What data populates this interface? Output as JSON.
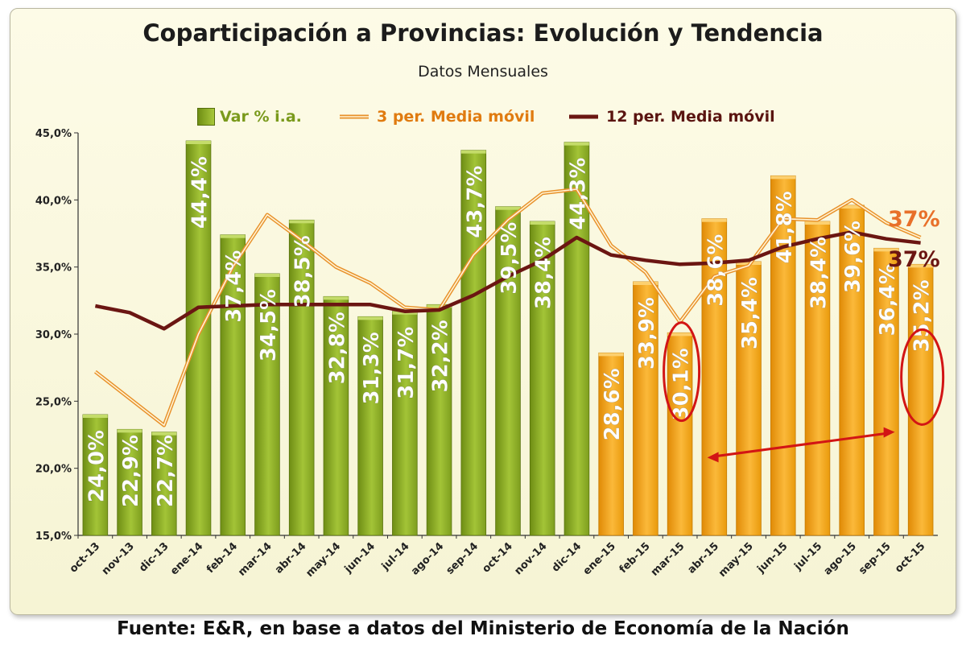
{
  "chart_data": {
    "type": "bar",
    "title": "Coparticipación a Provincias: Evolución y Tendencia",
    "subtitle": "Datos Mensuales",
    "categories": [
      "oct-13",
      "nov-13",
      "dic-13",
      "ene-14",
      "feb-14",
      "mar-14",
      "abr-14",
      "may-14",
      "jun-14",
      "jul-14",
      "ago-14",
      "sep-14",
      "oct-14",
      "nov-14",
      "dic-14",
      "ene-15",
      "feb-15",
      "mar-15",
      "abr-15",
      "may-15",
      "jun-15",
      "jul-15",
      "ago-15",
      "sep-15",
      "oct-15"
    ],
    "series": [
      {
        "name": "Var % i.a.",
        "kind": "bar",
        "values": [
          24.0,
          22.9,
          22.7,
          44.4,
          37.4,
          34.5,
          38.5,
          32.8,
          31.3,
          31.7,
          32.2,
          43.7,
          39.5,
          38.4,
          44.3,
          28.6,
          33.9,
          30.1,
          38.6,
          35.4,
          41.8,
          38.4,
          39.6,
          36.4,
          35.2
        ],
        "labels": [
          "24,0%",
          "22,9%",
          "22,7%",
          "44,4%",
          "37,4%",
          "34,5%",
          "38,5%",
          "32,8%",
          "31,3%",
          "31,7%",
          "32,2%",
          "43,7%",
          "39,5%",
          "38,4%",
          "44,3%",
          "28,6%",
          "33,9%",
          "30,1%",
          "38,6%",
          "35,4%",
          "41,8%",
          "38,4%",
          "39,6%",
          "36,4%",
          "35,2%"
        ],
        "colors": {
          "2013-2014": "#8aaa24",
          "2015": "#f5a410"
        }
      },
      {
        "name": "3 per. Media móvil",
        "kind": "line",
        "color": "#e8912a",
        "values": [
          27.2,
          null,
          23.2,
          30.0,
          35.0,
          38.9,
          37.0,
          35.0,
          33.8,
          32.0,
          31.8,
          35.9,
          38.5,
          40.5,
          40.8,
          36.6,
          34.6,
          30.9,
          34.3,
          35.1,
          38.6,
          38.5,
          40.0,
          38.3,
          37.2
        ]
      },
      {
        "name": "12 per. Media móvil",
        "kind": "line",
        "color": "#6b1612",
        "values": [
          32.1,
          31.6,
          30.4,
          32.0,
          32.1,
          32.2,
          32.2,
          32.2,
          32.2,
          31.7,
          31.8,
          32.9,
          34.3,
          35.5,
          37.2,
          35.9,
          35.5,
          35.2,
          35.3,
          35.5,
          36.5,
          37.1,
          37.6,
          37.1,
          36.8
        ]
      }
    ],
    "y_axis": {
      "min": 15,
      "max": 45,
      "step": 5,
      "tick_labels": [
        "15,0%",
        "20,0%",
        "25,0%",
        "30,0%",
        "35,0%",
        "40,0%",
        "45,0%"
      ]
    },
    "annotations": {
      "end_label_3per": "37%",
      "end_label_12per": "37%",
      "circled_categories": [
        "mar-15",
        "oct-15"
      ],
      "arrow_between": [
        "mar-15",
        "oct-15"
      ]
    },
    "legend_position": "top"
  },
  "source": "Fuente: E&R, en base a datos del Ministerio de Economía de la Nación"
}
